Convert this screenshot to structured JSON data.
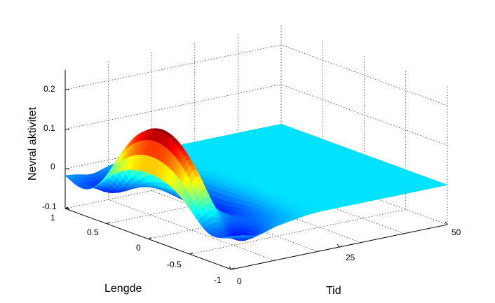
{
  "chart_data": {
    "type": "surface",
    "xlabel": "Tid",
    "ylabel": "Lengde",
    "zlabel": "Nevral aktivitet",
    "xlim": [
      0,
      50
    ],
    "ylim": [
      -1,
      1
    ],
    "zlim": [
      -0.1,
      0.25
    ],
    "x_ticks": [
      "0",
      "25",
      "50"
    ],
    "y_ticks": [
      "1",
      "0.5",
      "0",
      "-0.5",
      "-1"
    ],
    "z_ticks": [
      "0.2",
      "0.1",
      "0",
      "-0.1"
    ],
    "grid": true,
    "colormap": "jet",
    "description_of_series": "activity pulse centered at Lengde 0 near start of Tid, peak about 0.17, flat baseline afterwards",
    "peak_value": 0.17,
    "peak_x": 3,
    "pulse_width_y": 0.45,
    "surround_min": -0.08,
    "plane_value": 0
  }
}
